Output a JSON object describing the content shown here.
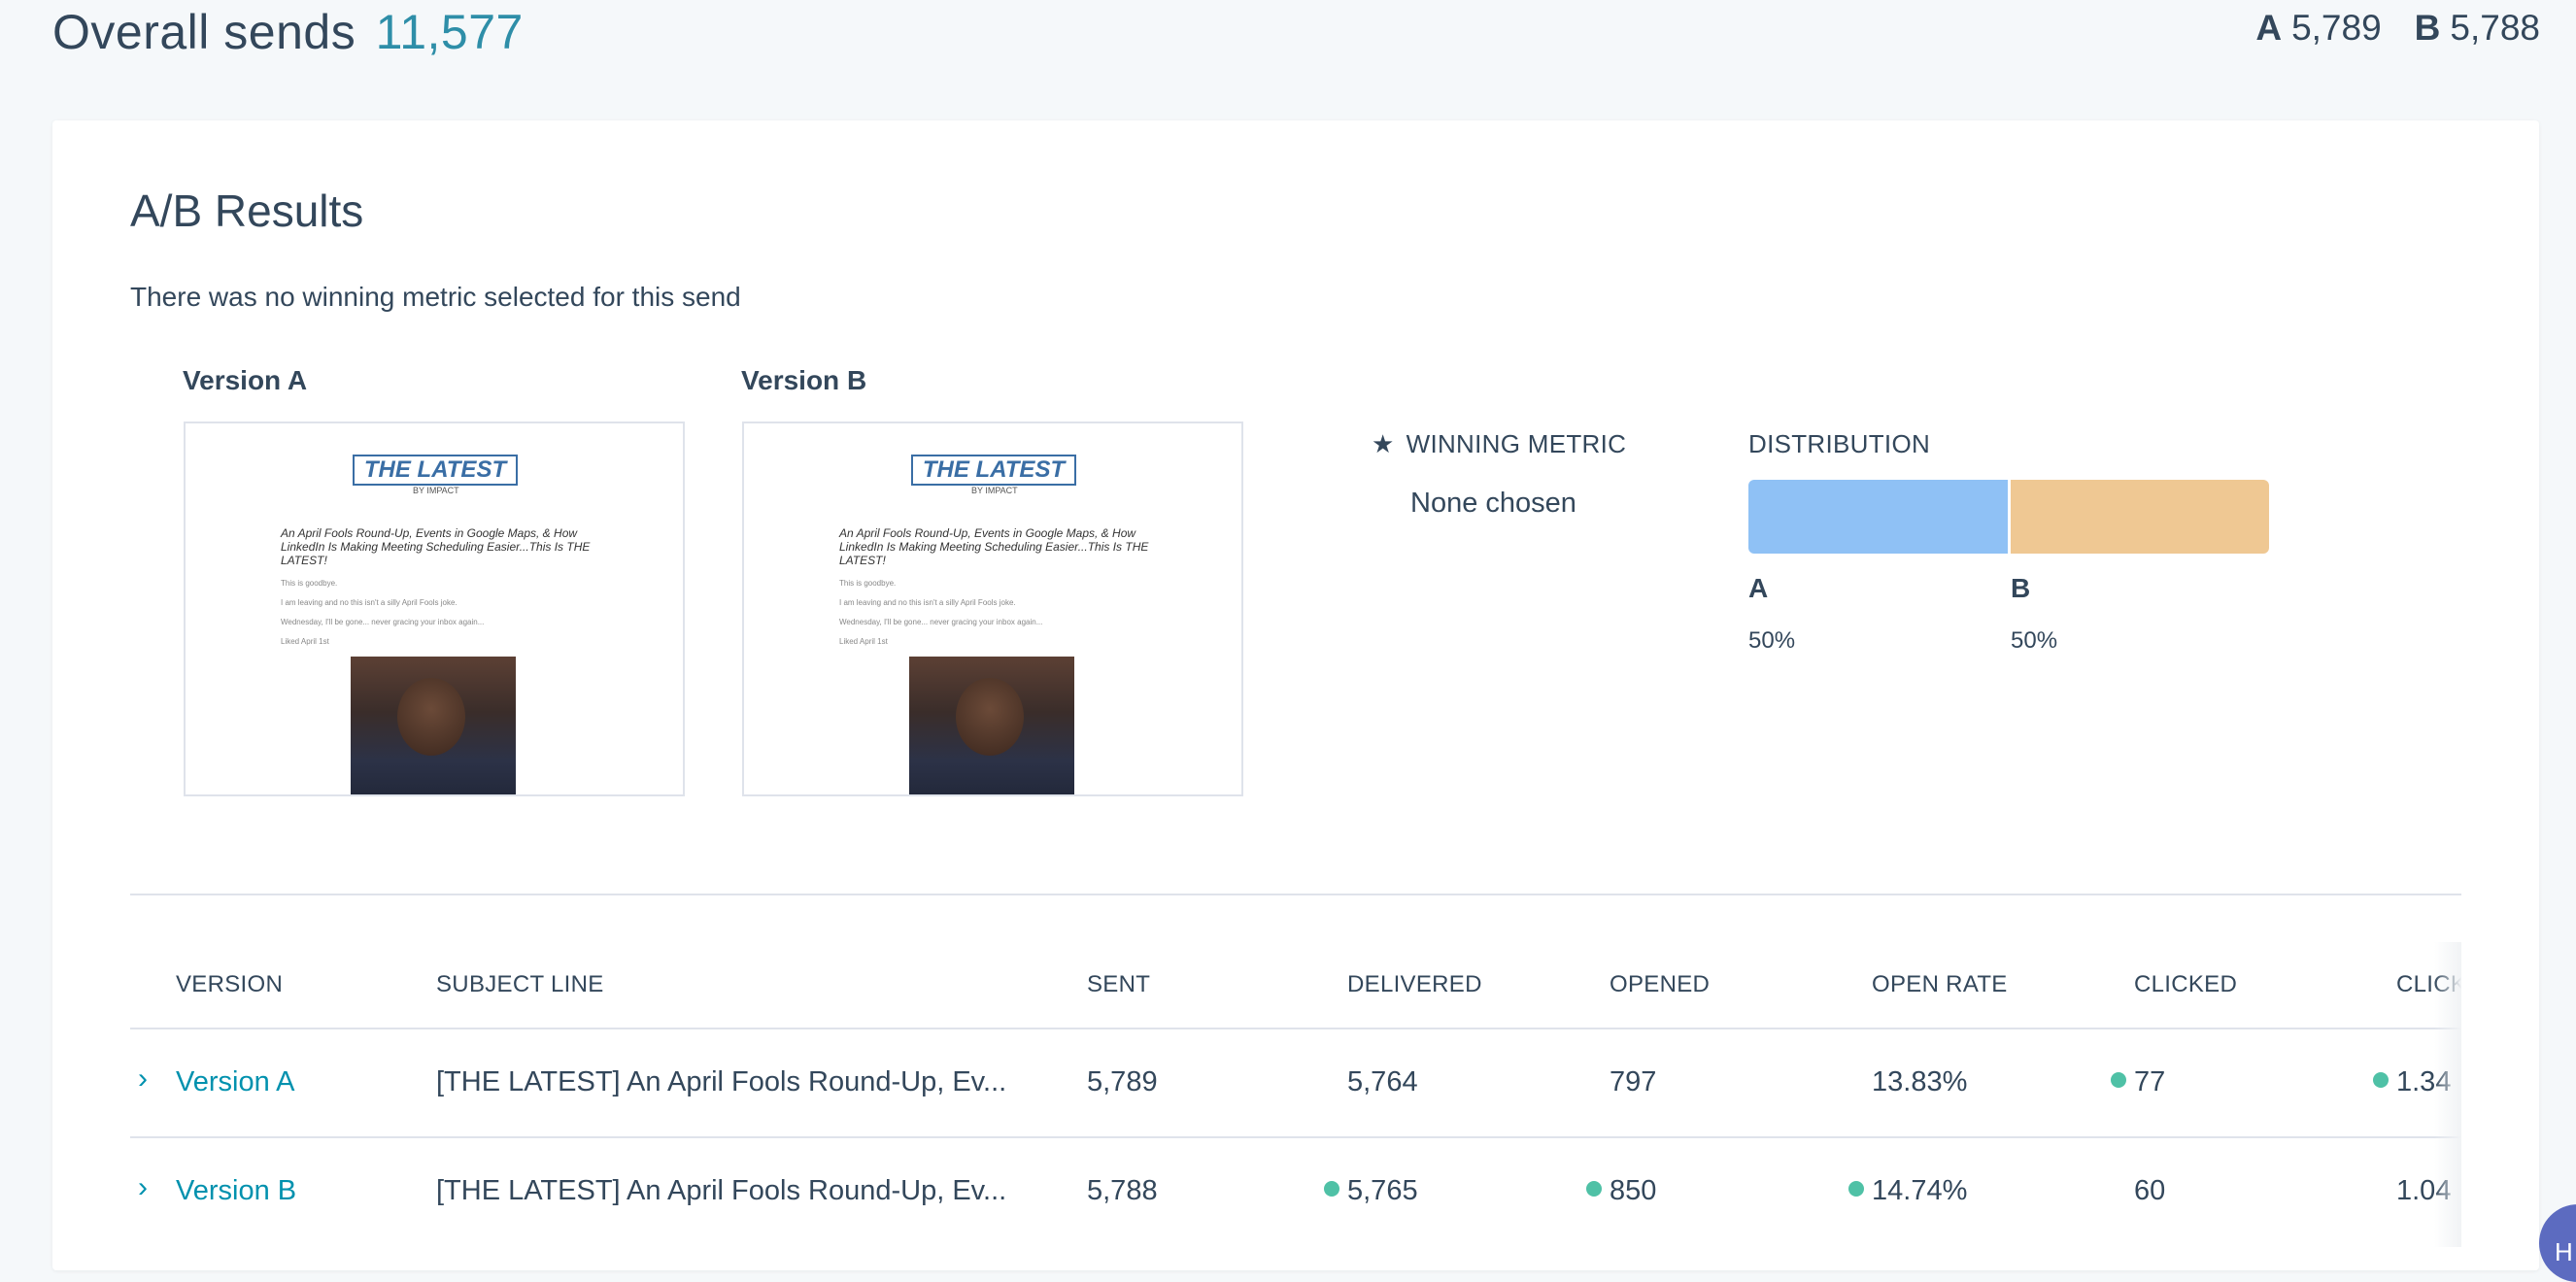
{
  "header": {
    "overall_label": "Overall sends",
    "overall_count": "11,577",
    "split": {
      "a_label": "A",
      "a_value": "5,789",
      "b_label": "B",
      "b_value": "5,788"
    }
  },
  "results": {
    "title": "A/B Results",
    "no_metric_text": "There was no winning metric selected for this send",
    "versions": [
      {
        "label": "Version A"
      },
      {
        "label": "Version B"
      }
    ],
    "preview": {
      "logo_text": "THE LATEST",
      "byline": "BY IMPACT",
      "headline": "An April Fools Round-Up, Events in Google Maps, & How LinkedIn Is Making Meeting Scheduling Easier...This Is THE LATEST!",
      "lines": [
        "This is goodbye.",
        "I am leaving and no this isn't a silly April Fools joke.",
        "Wednesday, I'll be gone... never gracing your inbox again...",
        "Liked April 1st"
      ]
    },
    "winning_metric": {
      "label": "WINNING METRIC",
      "value": "None chosen"
    },
    "distribution": {
      "label": "DISTRIBUTION",
      "a_label": "A",
      "a_pct": "50%",
      "a_share": 50,
      "b_label": "B",
      "b_pct": "50%",
      "b_share": 50,
      "colors": {
        "a": "#8fc1f5",
        "b": "#efc893"
      }
    }
  },
  "table": {
    "headers": [
      "VERSION",
      "SUBJECT LINE",
      "SENT",
      "DELIVERED",
      "OPENED",
      "OPEN RATE",
      "CLICKED",
      "CLICK"
    ],
    "rows": [
      {
        "version": "Version A",
        "subject": "[THE LATEST] An April Fools Round-Up, Ev...",
        "sent": "5,789",
        "delivered": "5,764",
        "opened": "797",
        "open_rate": "13.83%",
        "clicked": "77",
        "click_rate": "1.34"
      },
      {
        "version": "Version B",
        "subject": "[THE LATEST] An April Fools Round-Up, Ev...",
        "sent": "5,788",
        "delivered": "5,765",
        "opened": "850",
        "open_rate": "14.74%",
        "clicked": "60",
        "click_rate": "1.04"
      }
    ],
    "winner_dot_color": "#4fc1a6"
  },
  "help": {
    "label": "H"
  }
}
